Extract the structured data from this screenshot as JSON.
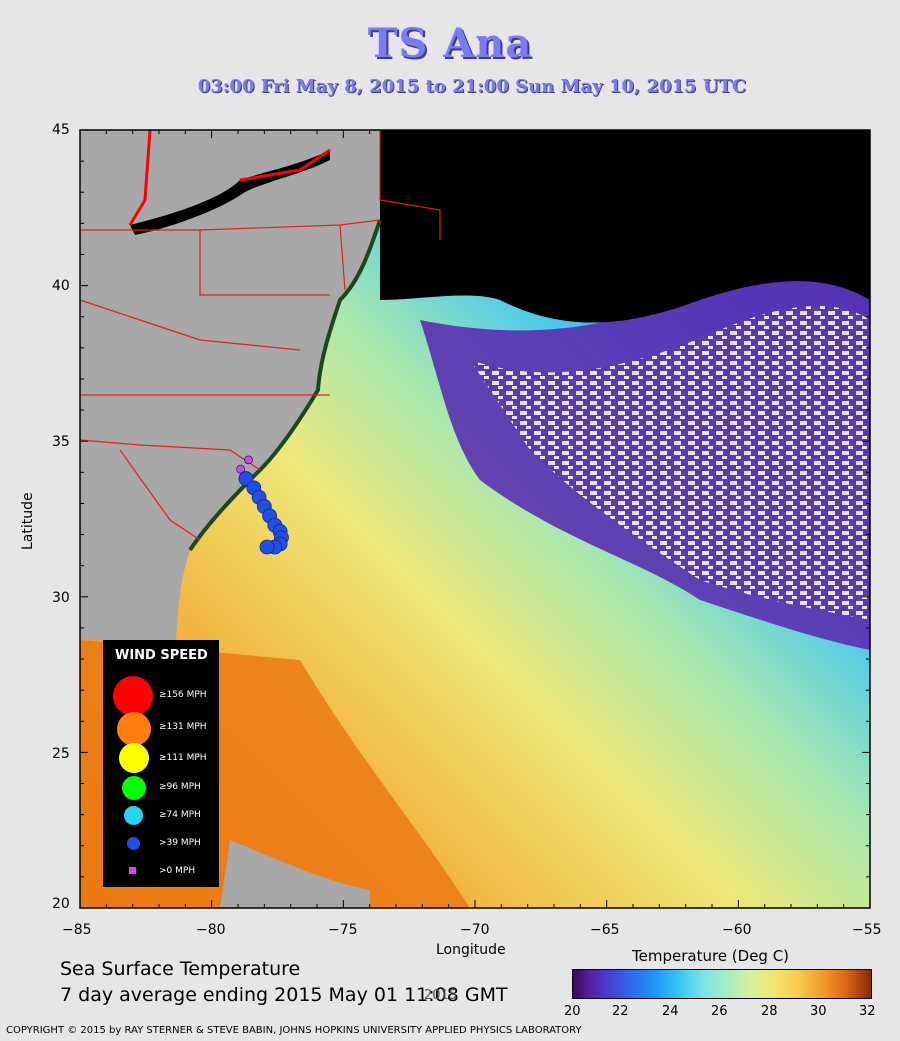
{
  "header": {
    "title": "TS Ana",
    "subtitle": "03:00 Fri May  8, 2015 to 21:00 Sun May 10, 2015  UTC"
  },
  "axes": {
    "xlabel": "Longitude",
    "ylabel": "Latitude",
    "x_ticks": [
      "−85",
      "−80",
      "−75",
      "−70",
      "−65",
      "−60",
      "−55"
    ],
    "y_ticks": [
      "45",
      "40",
      "35",
      "30",
      "25",
      "20"
    ]
  },
  "legend": {
    "title": "WIND SPEED",
    "items": [
      {
        "label": "≥156 MPH",
        "color": "#ff0000"
      },
      {
        "label": "≥131 MPH",
        "color": "#ff7f0a"
      },
      {
        "label": "≥111 MPH",
        "color": "#ffff00"
      },
      {
        "label": "≥96 MPH",
        "color": "#00ff00"
      },
      {
        "label": "≥74 MPH",
        "color": "#22d6f2"
      },
      {
        "label": ">39 MPH",
        "color": "#1f4fe6"
      },
      {
        "label": ">0 MPH",
        "color": "#e040e0"
      }
    ]
  },
  "sst_caption": {
    "line1": "Sea Surface Temperature",
    "line2": "7 day average ending 2015 May 01 11:08 GMT",
    "overlap": "2015"
  },
  "colorbar": {
    "title": "Temperature (Deg C)",
    "ticks": [
      "20",
      "22",
      "24",
      "26",
      "28",
      "30",
      "32"
    ]
  },
  "copyright": "COPYRIGHT © 2015 by RAY STERNER & STEVE BABIN, JOHNS HOPKINS UNIVERSITY APPLIED PHYSICS LABORATORY",
  "track": {
    "points": [
      {
        "lon": -78.6,
        "lat": 34.4,
        "cat": ">0 MPH"
      },
      {
        "lon": -78.9,
        "lat": 34.1,
        "cat": ">0 MPH"
      },
      {
        "lon": -78.7,
        "lat": 33.8,
        "cat": ">39 MPH"
      },
      {
        "lon": -78.4,
        "lat": 33.5,
        "cat": ">39 MPH"
      },
      {
        "lon": -78.2,
        "lat": 33.2,
        "cat": ">39 MPH"
      },
      {
        "lon": -78.0,
        "lat": 32.9,
        "cat": ">39 MPH"
      },
      {
        "lon": -77.8,
        "lat": 32.6,
        "cat": ">39 MPH"
      },
      {
        "lon": -77.6,
        "lat": 32.3,
        "cat": ">39 MPH"
      },
      {
        "lon": -77.4,
        "lat": 32.1,
        "cat": ">39 MPH"
      },
      {
        "lon": -77.35,
        "lat": 31.9,
        "cat": ">39 MPH"
      },
      {
        "lon": -77.4,
        "lat": 31.7,
        "cat": ">39 MPH"
      },
      {
        "lon": -77.6,
        "lat": 31.6,
        "cat": ">39 MPH"
      },
      {
        "lon": -77.9,
        "lat": 31.6,
        "cat": ">39 MPH"
      }
    ]
  }
}
